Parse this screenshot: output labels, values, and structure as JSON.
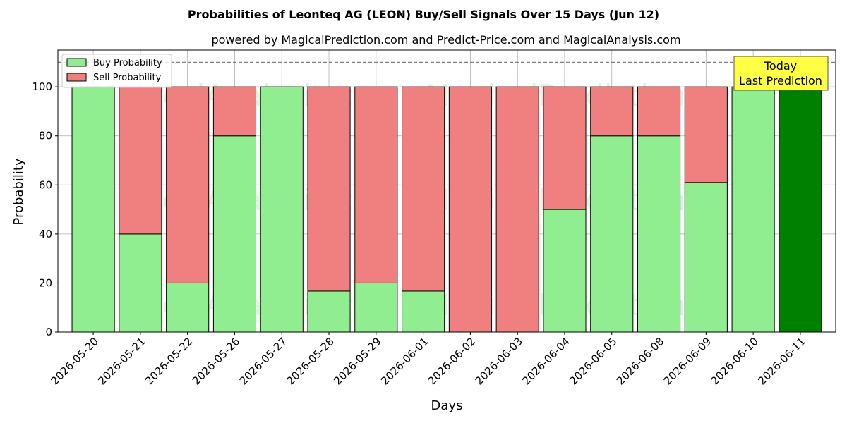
{
  "chart_data": {
    "type": "bar",
    "stacked": true,
    "title": "Probabilities of Leonteq AG (LEON) Buy/Sell Signals Over 15 Days (Jun 12)",
    "subtitle": "powered by MagicalPrediction.com and Predict-Price.com and MagicalAnalysis.com",
    "xlabel": "Days",
    "ylabel": "Probability",
    "ylim": [
      0,
      115
    ],
    "yticks": [
      0,
      20,
      40,
      60,
      80,
      100
    ],
    "grid": true,
    "legend_position": "top-left",
    "reference_line": 110,
    "categories": [
      "2026-05-20",
      "2026-05-21",
      "2026-05-22",
      "2026-05-26",
      "2026-05-27",
      "2026-05-28",
      "2026-05-29",
      "2026-06-01",
      "2026-06-02",
      "2026-06-03",
      "2026-06-04",
      "2026-06-05",
      "2026-06-08",
      "2026-06-09",
      "2026-06-10",
      "2026-06-11"
    ],
    "series": [
      {
        "name": "Buy Probability",
        "color": "#90ee90",
        "values": [
          100,
          40,
          20,
          80,
          100,
          16.7,
          20,
          16.7,
          0,
          0,
          50,
          80,
          80,
          61,
          100,
          100
        ]
      },
      {
        "name": "Sell Probability",
        "color": "#f08080",
        "values": [
          0,
          60,
          80,
          20,
          0,
          83.3,
          80,
          83.3,
          100,
          100,
          50,
          20,
          20,
          39,
          0,
          0
        ]
      }
    ],
    "highlight": {
      "index": 15,
      "color": "#008000",
      "annotation_lines": [
        "Today",
        "Last Prediction"
      ],
      "annotation_bg": "#ffff44"
    },
    "watermarks": [
      "MagicalAnalysis.com",
      "MagicalPrediction.com"
    ]
  }
}
